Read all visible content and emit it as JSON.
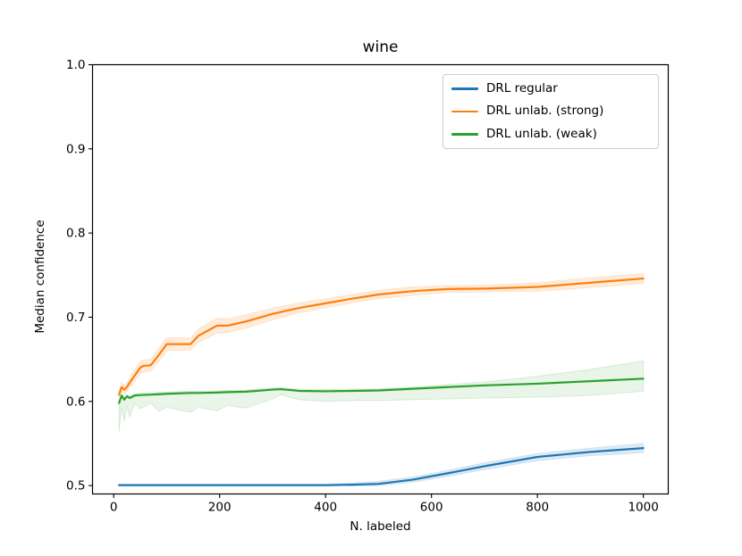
{
  "chart_data": {
    "type": "line",
    "title": "wine",
    "xlabel": "N. labeled",
    "ylabel": "Median confidence",
    "xlim": [
      -40,
      1047
    ],
    "ylim": [
      0.49,
      1.0
    ],
    "grid": false,
    "legend_position": "upper right",
    "xticks": {
      "values": [
        0,
        200,
        400,
        600,
        800,
        1000
      ],
      "labels": [
        "0",
        "200",
        "400",
        "600",
        "800",
        "1000"
      ]
    },
    "yticks": {
      "values": [
        0.5,
        0.6,
        0.7,
        0.8,
        0.9,
        1.0
      ],
      "labels": [
        "0.5",
        "0.6",
        "0.7",
        "0.8",
        "0.9",
        "1.0"
      ]
    },
    "series": [
      {
        "name": "DRL regular",
        "color": "#1f77b4",
        "band_opacity": 0.15,
        "x": [
          10,
          50,
          100,
          150,
          200,
          250,
          300,
          350,
          400,
          450,
          500,
          565,
          630,
          700,
          800,
          900,
          1000
        ],
        "y": [
          0.5005,
          0.5005,
          0.5005,
          0.5005,
          0.5005,
          0.5005,
          0.5005,
          0.5005,
          0.5005,
          0.501,
          0.502,
          0.507,
          0.5145,
          0.523,
          0.534,
          0.54,
          0.5445
        ],
        "band_lo": [
          0.4995,
          0.4995,
          0.4995,
          0.4995,
          0.4995,
          0.4995,
          0.4995,
          0.4995,
          0.4995,
          0.4995,
          0.5,
          0.504,
          0.511,
          0.519,
          0.5295,
          0.5355,
          0.539
        ],
        "band_hi": [
          0.5015,
          0.5015,
          0.5015,
          0.5015,
          0.5015,
          0.5015,
          0.5015,
          0.5015,
          0.5015,
          0.503,
          0.505,
          0.51,
          0.518,
          0.527,
          0.538,
          0.5445,
          0.55
        ]
      },
      {
        "name": "DRL unlab. (strong)",
        "color": "#ff7f0e",
        "band_opacity": 0.15,
        "x": [
          10,
          15,
          20,
          25,
          30,
          40,
          50,
          55,
          70,
          85,
          100,
          145,
          160,
          195,
          215,
          250,
          300,
          350,
          400,
          450,
          500,
          565,
          630,
          700,
          800,
          900,
          1000
        ],
        "y": [
          0.608,
          0.617,
          0.614,
          0.617,
          0.622,
          0.631,
          0.64,
          0.642,
          0.643,
          0.655,
          0.668,
          0.668,
          0.678,
          0.69,
          0.69,
          0.695,
          0.704,
          0.711,
          0.7165,
          0.722,
          0.727,
          0.731,
          0.7335,
          0.734,
          0.736,
          0.741,
          0.746
        ],
        "band_lo": [
          0.604,
          0.612,
          0.609,
          0.612,
          0.616,
          0.624,
          0.633,
          0.635,
          0.636,
          0.647,
          0.66,
          0.661,
          0.67,
          0.681,
          0.682,
          0.687,
          0.697,
          0.705,
          0.711,
          0.717,
          0.722,
          0.726,
          0.7295,
          0.73,
          0.731,
          0.735,
          0.74
        ],
        "band_hi": [
          0.612,
          0.622,
          0.619,
          0.622,
          0.628,
          0.638,
          0.647,
          0.649,
          0.65,
          0.663,
          0.676,
          0.675,
          0.686,
          0.699,
          0.698,
          0.703,
          0.711,
          0.717,
          0.722,
          0.727,
          0.732,
          0.736,
          0.7375,
          0.738,
          0.741,
          0.747,
          0.752
        ]
      },
      {
        "name": "DRL unlab. (weak)",
        "color": "#2ca02c",
        "band_opacity": 0.11,
        "x": [
          10,
          15,
          20,
          25,
          30,
          40,
          50,
          70,
          85,
          100,
          145,
          160,
          195,
          215,
          250,
          300,
          315,
          350,
          400,
          450,
          500,
          565,
          630,
          700,
          800,
          900,
          1000
        ],
        "y": [
          0.598,
          0.607,
          0.602,
          0.606,
          0.604,
          0.607,
          0.6075,
          0.608,
          0.6085,
          0.609,
          0.61,
          0.61,
          0.6105,
          0.611,
          0.6115,
          0.614,
          0.6145,
          0.6125,
          0.612,
          0.6125,
          0.613,
          0.615,
          0.617,
          0.619,
          0.621,
          0.624,
          0.627
        ],
        "band_lo": [
          0.563,
          0.594,
          0.576,
          0.595,
          0.581,
          0.598,
          0.591,
          0.598,
          0.588,
          0.593,
          0.587,
          0.593,
          0.589,
          0.595,
          0.592,
          0.603,
          0.608,
          0.602,
          0.6,
          0.601,
          0.601,
          0.602,
          0.603,
          0.604,
          0.605,
          0.607,
          0.612
        ],
        "band_hi": [
          0.6,
          0.609,
          0.604,
          0.608,
          0.606,
          0.609,
          0.61,
          0.61,
          0.611,
          0.611,
          0.612,
          0.612,
          0.6125,
          0.613,
          0.6135,
          0.616,
          0.6165,
          0.6145,
          0.614,
          0.6145,
          0.615,
          0.617,
          0.62,
          0.623,
          0.63,
          0.638,
          0.648
        ]
      }
    ]
  }
}
